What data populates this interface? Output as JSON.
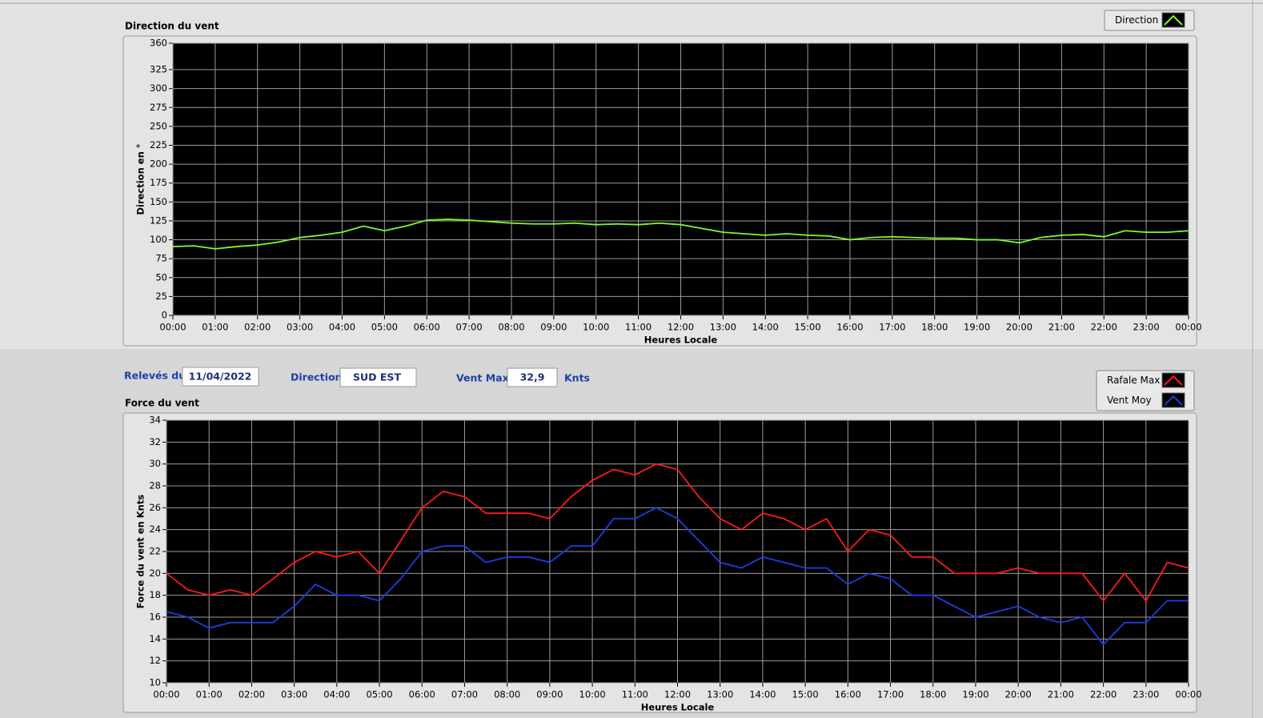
{
  "chart_data": [
    {
      "type": "line",
      "title": "Direction du vent",
      "ylabel": "Direction en °",
      "xlabel": "Heures Locale",
      "grid": true,
      "x": [
        0,
        0.5,
        1,
        1.5,
        2,
        2.5,
        3,
        3.5,
        4,
        4.5,
        5,
        5.5,
        6,
        6.5,
        7,
        7.5,
        8,
        8.5,
        9,
        9.5,
        10,
        10.5,
        11,
        11.5,
        12,
        12.5,
        13,
        13.5,
        14,
        14.5,
        15,
        15.5,
        16,
        16.5,
        17,
        17.5,
        18,
        18.5,
        19,
        19.5,
        20,
        20.5,
        21,
        21.5,
        22,
        22.5,
        23,
        23.5,
        24
      ],
      "xlim": [
        0,
        24
      ],
      "xticks": [
        {
          "value": 0,
          "label": "00:00"
        },
        {
          "value": 1,
          "label": "01:00"
        },
        {
          "value": 2,
          "label": "02:00"
        },
        {
          "value": 3,
          "label": "03:00"
        },
        {
          "value": 4,
          "label": "04:00"
        },
        {
          "value": 5,
          "label": "05:00"
        },
        {
          "value": 6,
          "label": "06:00"
        },
        {
          "value": 7,
          "label": "07:00"
        },
        {
          "value": 8,
          "label": "08:00"
        },
        {
          "value": 9,
          "label": "09:00"
        },
        {
          "value": 10,
          "label": "10:00"
        },
        {
          "value": 11,
          "label": "11:00"
        },
        {
          "value": 12,
          "label": "12:00"
        },
        {
          "value": 13,
          "label": "13:00"
        },
        {
          "value": 14,
          "label": "14:00"
        },
        {
          "value": 15,
          "label": "15:00"
        },
        {
          "value": 16,
          "label": "16:00"
        },
        {
          "value": 17,
          "label": "17:00"
        },
        {
          "value": 18,
          "label": "18:00"
        },
        {
          "value": 19,
          "label": "19:00"
        },
        {
          "value": 20,
          "label": "20:00"
        },
        {
          "value": 21,
          "label": "21:00"
        },
        {
          "value": 22,
          "label": "22:00"
        },
        {
          "value": 23,
          "label": "23:00"
        },
        {
          "value": 24,
          "label": "00:00"
        }
      ],
      "ylim": [
        0,
        360
      ],
      "yticks": [
        0,
        25,
        50,
        75,
        100,
        125,
        150,
        175,
        200,
        225,
        250,
        275,
        300,
        325,
        360
      ],
      "series": [
        {
          "name": "Direction",
          "color": "#7cfc28",
          "values": [
            91,
            92,
            88,
            91,
            93,
            97,
            103,
            106,
            110,
            118,
            112,
            118,
            126,
            127,
            126,
            124,
            122,
            121,
            121,
            122,
            120,
            121,
            120,
            122,
            120,
            115,
            110,
            108,
            106,
            108,
            106,
            105,
            100,
            103,
            104,
            103,
            102,
            102,
            100,
            100,
            96,
            103,
            106,
            107,
            104,
            112,
            110,
            110,
            112
          ]
        }
      ]
    },
    {
      "type": "line",
      "title": "Force du vent",
      "ylabel": "Force du vent en Knts",
      "xlabel": "Heures Locale",
      "grid": true,
      "x": [
        0,
        0.5,
        1,
        1.5,
        2,
        2.5,
        3,
        3.5,
        4,
        4.5,
        5,
        5.5,
        6,
        6.5,
        7,
        7.5,
        8,
        8.5,
        9,
        9.5,
        10,
        10.5,
        11,
        11.5,
        12,
        12.5,
        13,
        13.5,
        14,
        14.5,
        15,
        15.5,
        16,
        16.5,
        17,
        17.5,
        18,
        18.5,
        19,
        19.5,
        20,
        20.5,
        21,
        21.5,
        22,
        22.5,
        23,
        23.5,
        24
      ],
      "xlim": [
        0,
        24
      ],
      "xticks": [
        {
          "value": 0,
          "label": "00:00"
        },
        {
          "value": 1,
          "label": "01:00"
        },
        {
          "value": 2,
          "label": "02:00"
        },
        {
          "value": 3,
          "label": "03:00"
        },
        {
          "value": 4,
          "label": "04:00"
        },
        {
          "value": 5,
          "label": "05:00"
        },
        {
          "value": 6,
          "label": "06:00"
        },
        {
          "value": 7,
          "label": "07:00"
        },
        {
          "value": 8,
          "label": "08:00"
        },
        {
          "value": 9,
          "label": "09:00"
        },
        {
          "value": 10,
          "label": "10:00"
        },
        {
          "value": 11,
          "label": "11:00"
        },
        {
          "value": 12,
          "label": "12:00"
        },
        {
          "value": 13,
          "label": "13:00"
        },
        {
          "value": 14,
          "label": "14:00"
        },
        {
          "value": 15,
          "label": "15:00"
        },
        {
          "value": 16,
          "label": "16:00"
        },
        {
          "value": 17,
          "label": "17:00"
        },
        {
          "value": 18,
          "label": "18:00"
        },
        {
          "value": 19,
          "label": "19:00"
        },
        {
          "value": 20,
          "label": "20:00"
        },
        {
          "value": 21,
          "label": "21:00"
        },
        {
          "value": 22,
          "label": "22:00"
        },
        {
          "value": 23,
          "label": "23:00"
        },
        {
          "value": 24,
          "label": "00:00"
        }
      ],
      "ylim": [
        10,
        34
      ],
      "yticks": [
        10,
        12,
        14,
        16,
        18,
        20,
        22,
        24,
        26,
        28,
        30,
        32,
        34
      ],
      "series": [
        {
          "name": "Rafale Max",
          "color": "#ff1a1a",
          "values": [
            20,
            18.5,
            18,
            18.5,
            18,
            19.5,
            21,
            22,
            21.5,
            22,
            20,
            23,
            26,
            27.5,
            27,
            25.5,
            25.5,
            25.5,
            25,
            27,
            28.5,
            29.5,
            29,
            30,
            29.5,
            27,
            25,
            24,
            25.5,
            25,
            24,
            25,
            22,
            24,
            23.5,
            21.5,
            21.5,
            20,
            20,
            20,
            20.5,
            20,
            20,
            20,
            17.5,
            20,
            17.5,
            21,
            20.5
          ]
        },
        {
          "name": "Vent Moy",
          "color": "#1a3fe0",
          "values": [
            16.5,
            16,
            15,
            15.5,
            15.5,
            15.5,
            17,
            19,
            18,
            18,
            17.5,
            19.5,
            22,
            22.5,
            22.5,
            21,
            21.5,
            21.5,
            21,
            22.5,
            22.5,
            25,
            25,
            26,
            25,
            23,
            21,
            20.5,
            21.5,
            21,
            20.5,
            20.5,
            19,
            20,
            19.5,
            18,
            18,
            17,
            16,
            16.5,
            17,
            16,
            15.5,
            16,
            13.5,
            15.5,
            15.5,
            17.5,
            17.5
          ]
        }
      ]
    }
  ],
  "controls": {
    "date_label": "Relevés du",
    "date": "11/04/2022",
    "direction_label": "Direction",
    "direction": "SUD EST",
    "vent_max_label": "Vent Max",
    "vent_max": "32,9",
    "unit": "Knts"
  }
}
